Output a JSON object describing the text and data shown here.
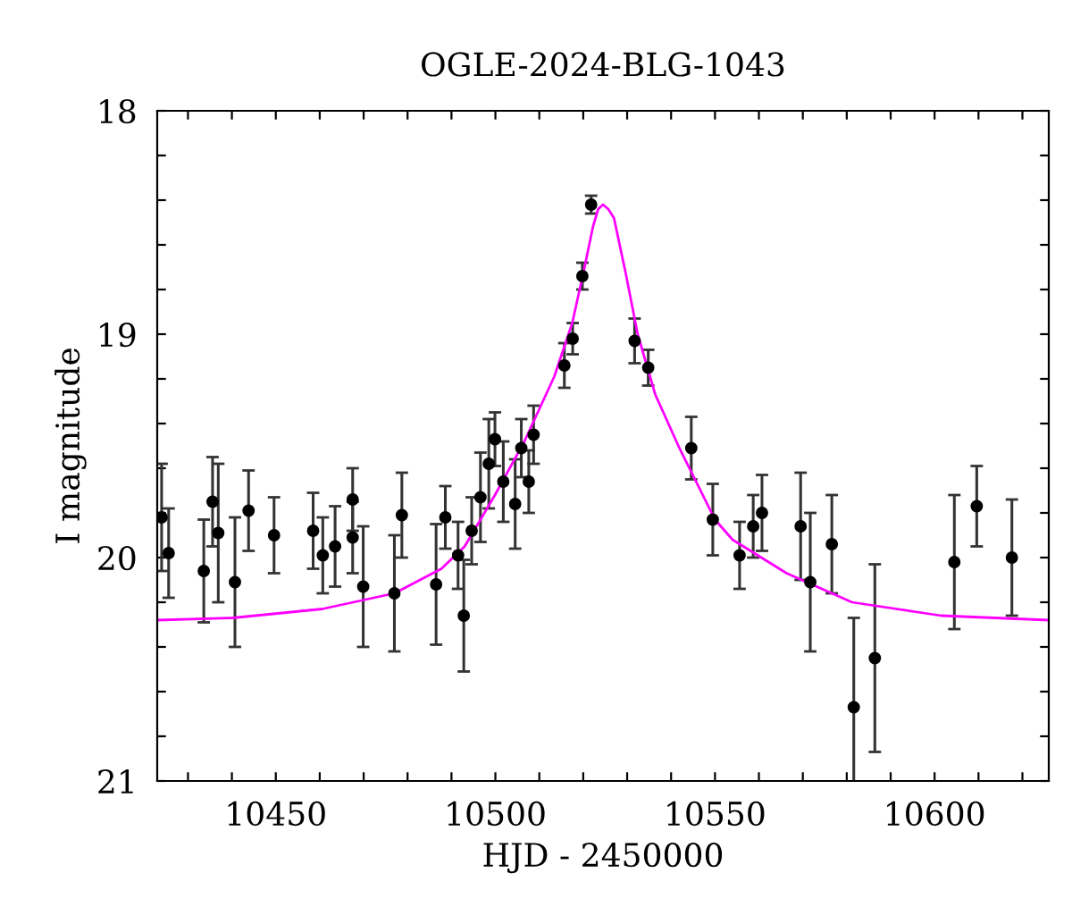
{
  "chart_data": {
    "type": "scatter",
    "title": "OGLE-2024-BLG-1043",
    "xlabel": "HJD - 2450000",
    "ylabel": "I magnitude",
    "xlim": [
      10423,
      10626
    ],
    "ylim": [
      21,
      18
    ],
    "xticks": [
      {
        "value": 10430,
        "label": null
      },
      {
        "value": 10440,
        "label": null
      },
      10450,
      {
        "value": 10460,
        "label": null
      },
      {
        "value": 10470,
        "label": null
      },
      {
        "value": 10480,
        "label": null
      },
      {
        "value": 10490,
        "label": null
      },
      10500,
      {
        "value": 10510,
        "label": null
      },
      {
        "value": 10520,
        "label": null
      },
      {
        "value": 10530,
        "label": null
      },
      {
        "value": 10540,
        "label": null
      },
      10550,
      {
        "value": 10560,
        "label": null
      },
      {
        "value": 10570,
        "label": null
      },
      {
        "value": 10580,
        "label": null
      },
      {
        "value": 10590,
        "label": null
      },
      10600,
      {
        "value": 10610,
        "label": null
      },
      {
        "value": 10620,
        "label": null
      }
    ],
    "yticks": [
      18,
      {
        "value": 18.2,
        "label": null
      },
      {
        "value": 18.4,
        "label": null
      },
      {
        "value": 18.6,
        "label": null
      },
      {
        "value": 18.8,
        "label": null
      },
      19,
      {
        "value": 19.2,
        "label": null
      },
      {
        "value": 19.4,
        "label": null
      },
      {
        "value": 19.6,
        "label": null
      },
      {
        "value": 19.8,
        "label": null
      },
      20,
      {
        "value": 20.2,
        "label": null
      },
      {
        "value": 20.4,
        "label": null
      },
      {
        "value": 20.6,
        "label": null
      },
      {
        "value": 20.8,
        "label": null
      },
      21
    ],
    "grid": false,
    "legend": false,
    "series": [
      {
        "color": "#000000",
        "marker": "circle",
        "x": [
          10424,
          10425.6,
          10433.6,
          10435.6,
          10436.9,
          10440.7,
          10443.8,
          10449.6,
          10458.5,
          10460.7,
          10463.5,
          10467.5,
          10467.5,
          10469.9,
          10477,
          10478.7,
          10486.5,
          10488.6,
          10491.5,
          10492.8,
          10494.6,
          10496.6,
          10498.5,
          10499.9,
          10501.8,
          10504.5,
          10505.9,
          10507.6,
          10508.7,
          10515.7,
          10517.6,
          10519.8,
          10521.8,
          10531.7,
          10534.8,
          10544.6,
          10549.5,
          10555.6,
          10558.7,
          10560.7,
          10569.5,
          10571.7,
          10576.6,
          10581.6,
          10586.4,
          10604.5,
          10609.6,
          10617.6
        ],
        "values": [
          19.82,
          19.98,
          20.06,
          19.75,
          19.89,
          20.11,
          19.79,
          19.9,
          19.88,
          19.99,
          19.95,
          19.74,
          19.91,
          20.13,
          20.16,
          19.81,
          20.12,
          19.82,
          19.99,
          20.26,
          19.88,
          19.73,
          19.58,
          19.47,
          19.66,
          19.76,
          19.51,
          19.66,
          19.45,
          19.14,
          19.02,
          18.74,
          18.42,
          19.03,
          19.15,
          19.51,
          19.83,
          19.99,
          19.86,
          19.8,
          19.86,
          20.11,
          19.94,
          20.67,
          20.45,
          20.02,
          19.77,
          20.0
        ],
        "errors": [
          0.24,
          0.2,
          0.23,
          0.2,
          0.31,
          0.29,
          0.18,
          0.17,
          0.17,
          0.17,
          0.18,
          0.14,
          0.16,
          0.27,
          0.26,
          0.19,
          0.27,
          0.14,
          0.15,
          0.25,
          0.15,
          0.2,
          0.2,
          0.12,
          0.18,
          0.2,
          0.13,
          0.14,
          0.13,
          0.1,
          0.07,
          0.06,
          0.04,
          0.1,
          0.08,
          0.14,
          0.16,
          0.15,
          0.14,
          0.17,
          0.24,
          0.31,
          0.22,
          0.4,
          0.42,
          0.3,
          0.18,
          0.26
        ]
      },
      {
        "type": "line",
        "color": "#ff00ff",
        "marker": "none",
        "line_style": "solid",
        "x": [
          10423,
          10440.2,
          10460.6,
          10477,
          10487.7,
          10493,
          10499.9,
          10506.6,
          10513.4,
          10517.5,
          10520.2,
          10522.2,
          10523.4,
          10524.5,
          10525.7,
          10527,
          10529.7,
          10532.4,
          10536.4,
          10541.9,
          10550,
          10554,
          10566.3,
          10581.2,
          10601.5,
          10626
        ],
        "values": [
          20.28,
          20.27,
          20.23,
          20.16,
          20.05,
          19.95,
          19.72,
          19.48,
          19.19,
          18.95,
          18.71,
          18.52,
          18.44,
          18.42,
          18.44,
          18.48,
          18.73,
          19.0,
          19.27,
          19.51,
          19.83,
          19.92,
          20.07,
          20.2,
          20.26,
          20.28
        ]
      }
    ]
  }
}
